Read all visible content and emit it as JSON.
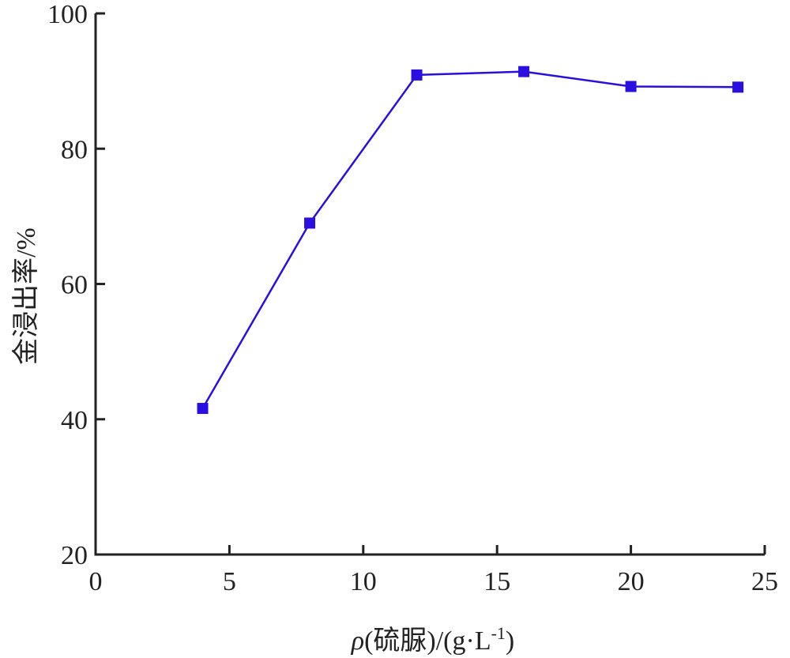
{
  "chart_data": {
    "type": "line",
    "title": "",
    "xlabel": "ρ(硫脲)/(g·L-1)",
    "xlabel_parts": {
      "rho": "ρ",
      "main": "(硫脲)/(g·L",
      "sup": "-1",
      "close": ")"
    },
    "ylabel": "金浸出率/%",
    "xlim": [
      0,
      25
    ],
    "ylim": [
      20,
      100
    ],
    "xticks": [
      0,
      5,
      10,
      15,
      20,
      25
    ],
    "yticks": [
      20,
      40,
      60,
      80,
      100
    ],
    "grid": false,
    "legend": "none",
    "series": [
      {
        "x": [
          4,
          8,
          12,
          16,
          20,
          24
        ],
        "y": [
          41.6,
          69.0,
          90.9,
          91.4,
          89.2,
          89.1
        ],
        "color": "#2a0fe0",
        "marker": "square"
      }
    ]
  }
}
